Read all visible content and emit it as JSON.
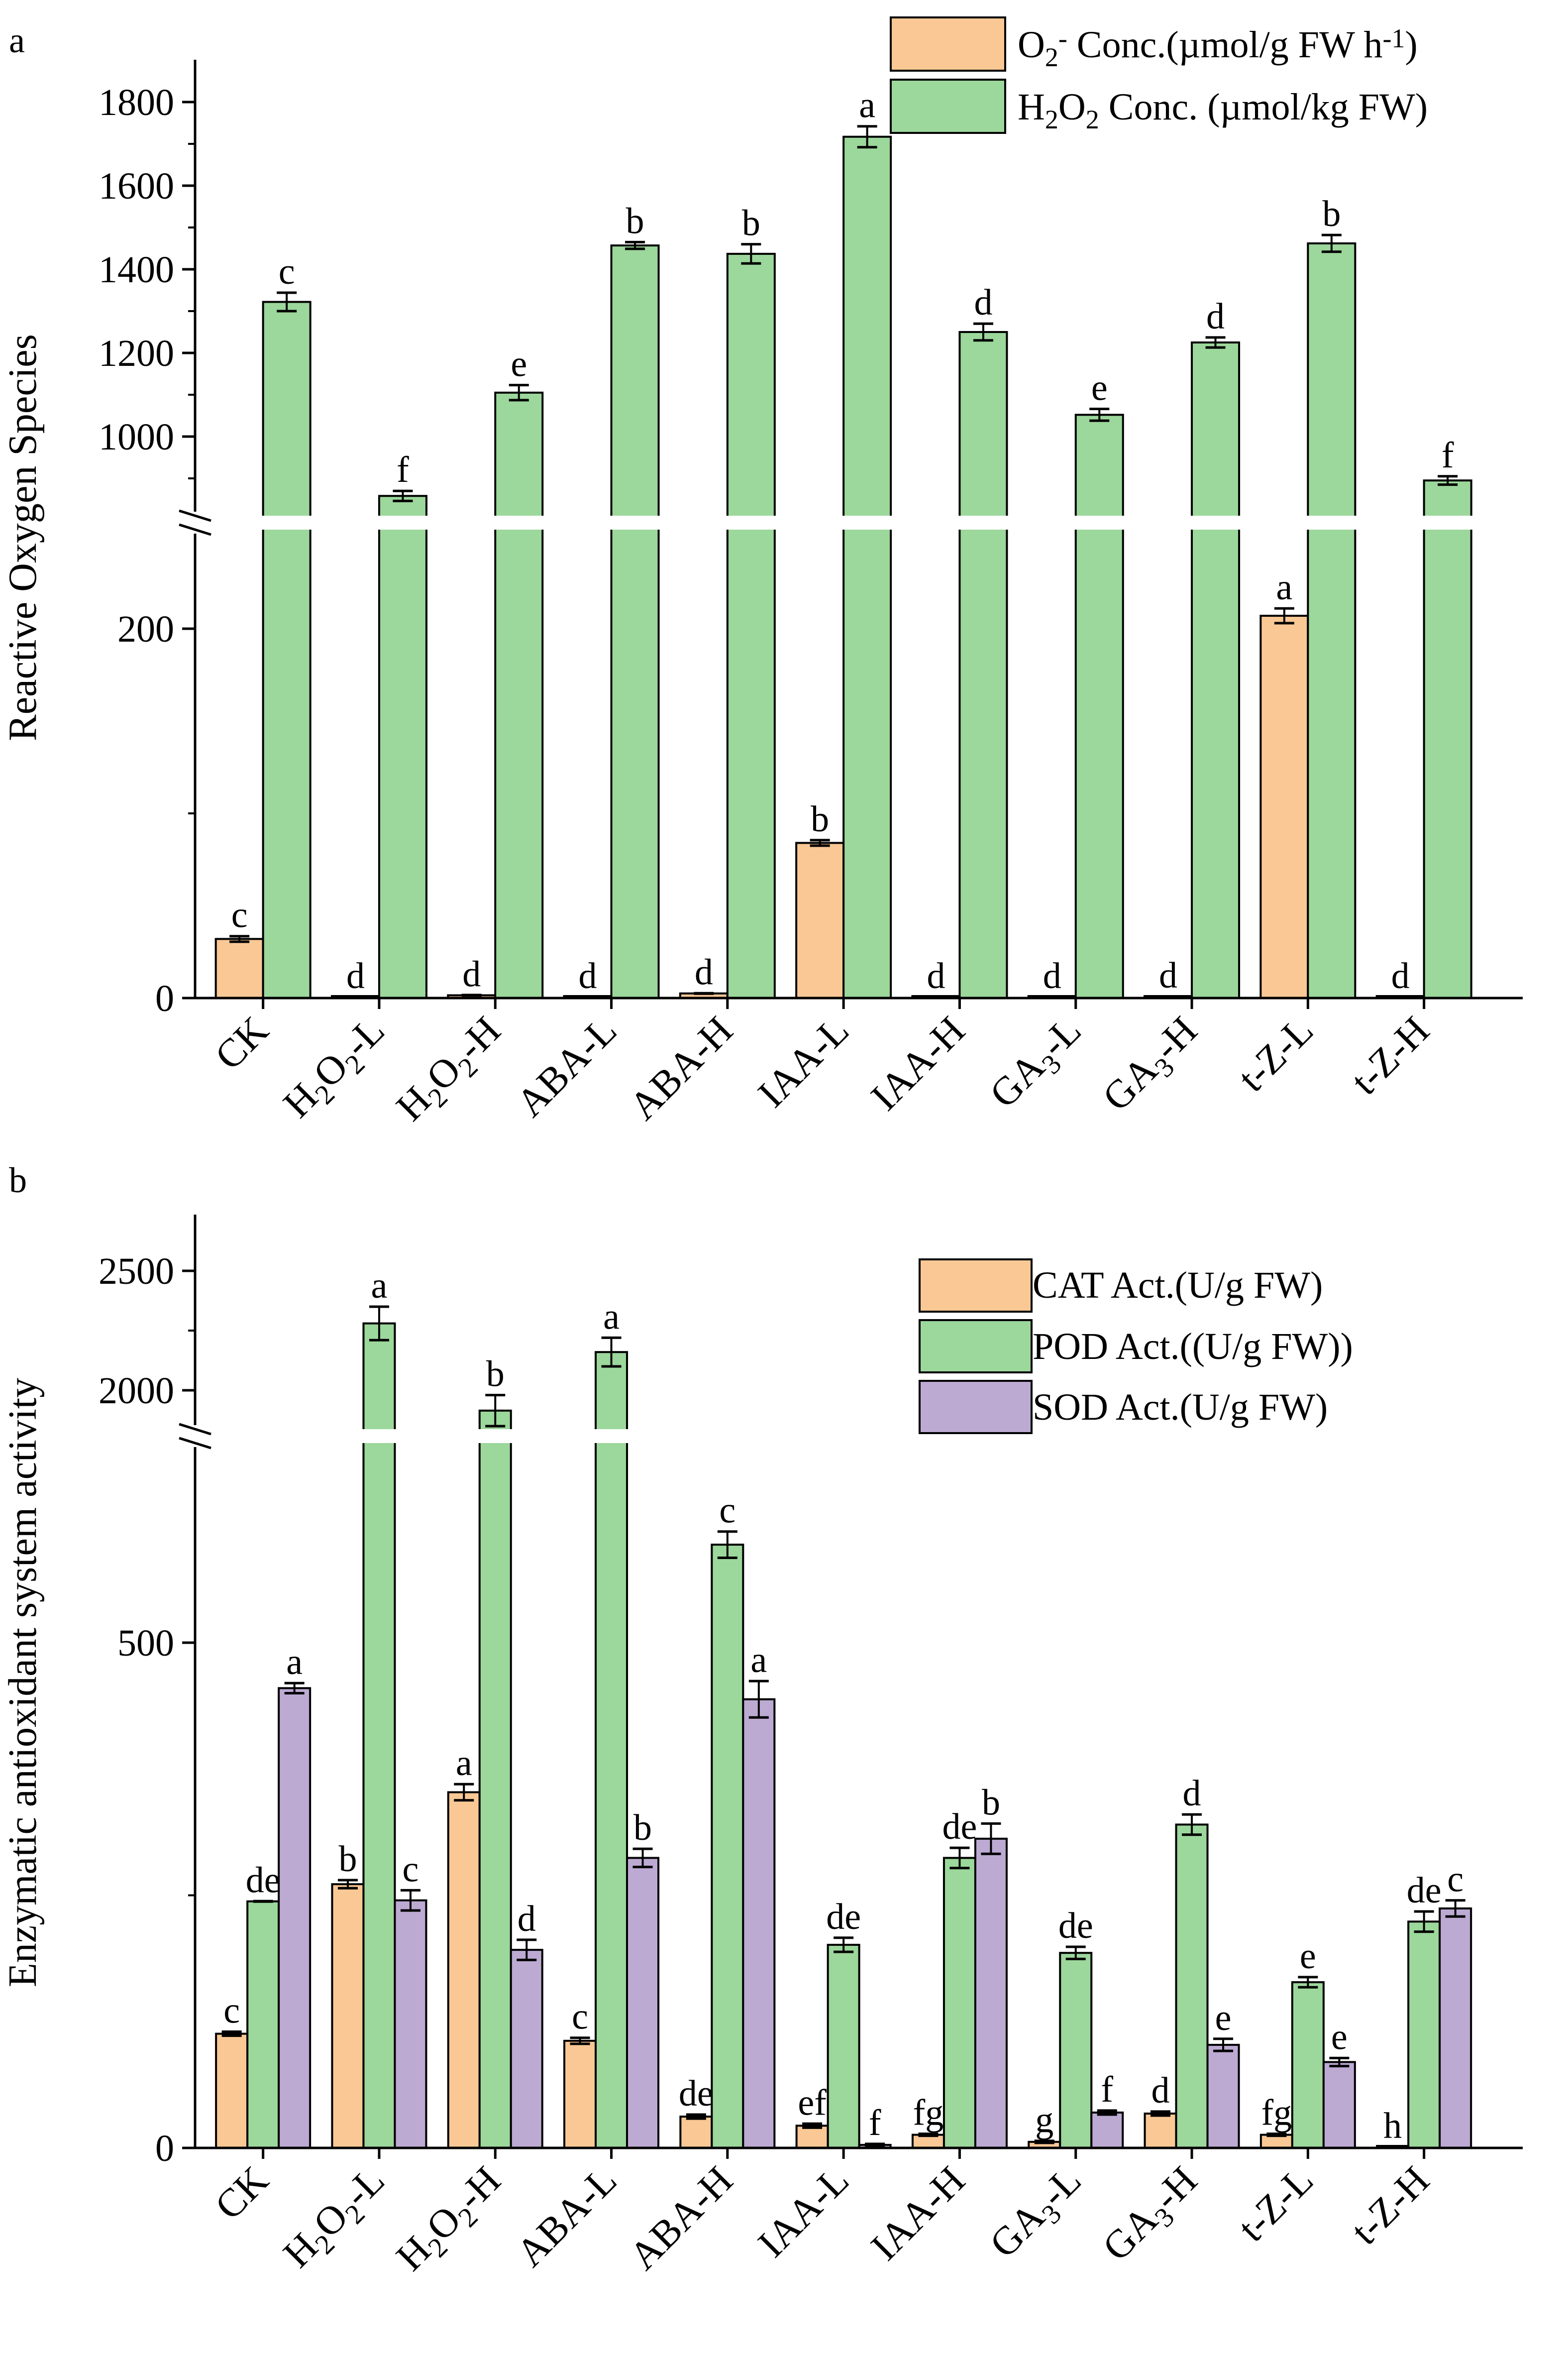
{
  "colors": {
    "orange": "#f9c895",
    "green": "#9cd79b",
    "purple": "#bcaad3",
    "axis": "#000000"
  },
  "chart_data": [
    {
      "panel_label": "a",
      "type": "bar",
      "ylabel": "Reactive Oxygen Species",
      "ylim": [
        0,
        1900
      ],
      "axis_break": [
        250,
        800
      ],
      "lower_ticks": [
        "0",
        "200"
      ],
      "upper_ticks": [
        "1000",
        "1200",
        "1400",
        "1600",
        "1800"
      ],
      "categories": [
        "CK",
        "H2O2-L",
        "H2O2-H",
        "ABA-L",
        "ABA-H",
        "IAA-L",
        "IAA-H",
        "GA3-L",
        "GA3-H",
        "t-Z-L",
        "t-Z-H"
      ],
      "series": [
        {
          "name": "O2- Conc.(µmol/g FW h-1)",
          "legend": "O₂⁻ Conc.(µmol/g FW h⁻¹)",
          "color": "orange",
          "values": [
            32,
            0.5,
            1.5,
            0.5,
            2.5,
            84,
            0.5,
            0.5,
            0.8,
            207,
            0.5
          ],
          "errors": [
            1.5,
            0,
            0,
            0,
            0,
            1.5,
            0,
            0,
            0,
            4,
            0
          ],
          "letters": [
            "c",
            "d",
            "d",
            "d",
            "d",
            "b",
            "d",
            "d",
            "d",
            "a",
            "d"
          ]
        },
        {
          "name": "H2O2 Conc. (µmol/kg FW)",
          "legend": "H₂O₂ Conc. (µmol/kg FW)",
          "color": "green",
          "values": [
            1322,
            858,
            1105,
            1457,
            1437,
            1717,
            1250,
            1052,
            1225,
            1462,
            895
          ],
          "errors": [
            22,
            12,
            18,
            8,
            23,
            25,
            20,
            14,
            12,
            20,
            10
          ],
          "letters": [
            "c",
            "f",
            "e",
            "b",
            "b",
            "a",
            "d",
            "e",
            "d",
            "b",
            "f"
          ]
        }
      ]
    },
    {
      "panel_label": "b",
      "type": "bar",
      "ylabel": "Enzymatic antioxidant system activity",
      "ylim": [
        0,
        2750
      ],
      "axis_break": [
        800,
        1700
      ],
      "lower_ticks": [
        "0",
        "500"
      ],
      "upper_ticks": [
        "2000",
        "2500"
      ],
      "categories": [
        "CK",
        "H2O2-L",
        "H2O2-H",
        "ABA-L",
        "ABA-H",
        "IAA-L",
        "IAA-H",
        "GA3-L",
        "GA3-H",
        "t-Z-L",
        "t-Z-H"
      ],
      "series": [
        {
          "name": "CAT Act.(U/g FW)",
          "legend": "CAT Act.(U/g FW)",
          "color": "orange",
          "values": [
            113,
            261,
            352,
            106,
            31,
            22,
            13,
            6,
            34,
            13,
            1
          ],
          "errors": [
            2,
            4,
            8,
            3,
            2,
            2,
            1,
            1,
            2,
            1,
            0
          ],
          "letters": [
            "c",
            "b",
            "a",
            "c",
            "de",
            "ef",
            "fg",
            "g",
            "d",
            "fg",
            "h"
          ]
        },
        {
          "name": "POD Act.((U/g FW))",
          "legend": "POD Act.((U/g FW))",
          "color": "green",
          "values": [
            244,
            2280,
            1915,
            2160,
            597,
            201,
            287,
            193,
            320,
            164,
            224
          ],
          "errors": [
            0,
            70,
            65,
            60,
            13,
            7,
            10,
            6,
            10,
            5,
            10
          ],
          "letters": [
            "de",
            "a",
            "b",
            "a",
            "c",
            "de",
            "de",
            "de",
            "d",
            "e",
            "de"
          ]
        },
        {
          "name": "SOD Act.(U/g FW)",
          "legend": "SOD Act.(U/g FW)",
          "color": "purple",
          "values": [
            455,
            245,
            196,
            287,
            444,
            3,
            306,
            35,
            102,
            85,
            237
          ],
          "errors": [
            5,
            10,
            10,
            9,
            18,
            1,
            15,
            2,
            6,
            4,
            8
          ],
          "letters": [
            "a",
            "c",
            "d",
            "b",
            "a",
            "f",
            "b",
            "f",
            "e",
            "e",
            "c"
          ]
        }
      ]
    }
  ]
}
